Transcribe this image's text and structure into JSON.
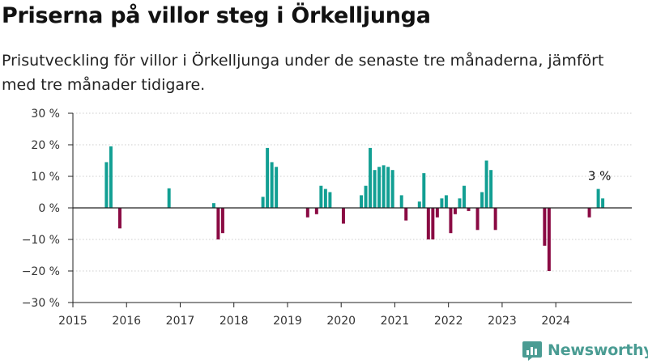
{
  "title": "Priserna på villor steg i Örkelljunga",
  "subtitle": "Prisutveckling för villor i Örkelljunga under de senaste tre månaderna, jämfört med tre månader tidigare.",
  "brand": {
    "name": "Newsworthy",
    "icon": "bar-chart-logo-icon",
    "color": "#4a9c93"
  },
  "colors": {
    "positive": "#129f93",
    "negative": "#8a0a43",
    "axis": "#222222",
    "grid": "#cccccc"
  },
  "chart_data": {
    "type": "bar",
    "x_unit": "month",
    "y_format": "percent",
    "ylim": [
      -30,
      30
    ],
    "yticks": [
      -30,
      -20,
      -10,
      0,
      10,
      20,
      30
    ],
    "ytick_labels": [
      "−30 %",
      "−20 %",
      "−10 %",
      "0 %",
      "10 %",
      "20 %",
      "30 %"
    ],
    "xlim": [
      "2015-01",
      "2025-06"
    ],
    "xticks": [
      "2015",
      "2016",
      "2017",
      "2018",
      "2019",
      "2020",
      "2021",
      "2022",
      "2023",
      "2024"
    ],
    "grid": "horizontal",
    "annotation": {
      "x": "2024-11",
      "label": "3 %"
    },
    "series": [
      {
        "points": [
          [
            "2015-08",
            14.5
          ],
          [
            "2015-09",
            19.5
          ],
          [
            "2015-11",
            -6.5
          ],
          [
            "2016-10",
            6.2
          ],
          [
            "2017-08",
            1.5
          ],
          [
            "2017-09",
            -10
          ],
          [
            "2017-10",
            -8
          ],
          [
            "2018-07",
            3.5
          ],
          [
            "2018-08",
            19
          ],
          [
            "2018-09",
            14.5
          ],
          [
            "2018-10",
            13
          ],
          [
            "2019-05",
            -3
          ],
          [
            "2019-07",
            -2
          ],
          [
            "2019-08",
            7
          ],
          [
            "2019-09",
            6
          ],
          [
            "2019-10",
            5
          ],
          [
            "2020-01",
            -5
          ],
          [
            "2020-05",
            4
          ],
          [
            "2020-06",
            7
          ],
          [
            "2020-07",
            19
          ],
          [
            "2020-08",
            12
          ],
          [
            "2020-09",
            13
          ],
          [
            "2020-10",
            13.5
          ],
          [
            "2020-11",
            13
          ],
          [
            "2020-12",
            12
          ],
          [
            "2021-02",
            4
          ],
          [
            "2021-03",
            -4
          ],
          [
            "2021-06",
            2
          ],
          [
            "2021-07",
            11
          ],
          [
            "2021-08",
            -10
          ],
          [
            "2021-09",
            -10
          ],
          [
            "2021-10",
            -3
          ],
          [
            "2021-11",
            3
          ],
          [
            "2021-12",
            4
          ],
          [
            "2022-01",
            -8
          ],
          [
            "2022-02",
            -2
          ],
          [
            "2022-03",
            3
          ],
          [
            "2022-04",
            7
          ],
          [
            "2022-05",
            -1
          ],
          [
            "2022-07",
            -7
          ],
          [
            "2022-08",
            5
          ],
          [
            "2022-09",
            15
          ],
          [
            "2022-10",
            12
          ],
          [
            "2022-11",
            -7
          ],
          [
            "2023-10",
            -12
          ],
          [
            "2023-11",
            -20
          ],
          [
            "2024-08",
            -3
          ],
          [
            "2024-10",
            6
          ],
          [
            "2024-11",
            3
          ]
        ]
      }
    ]
  }
}
